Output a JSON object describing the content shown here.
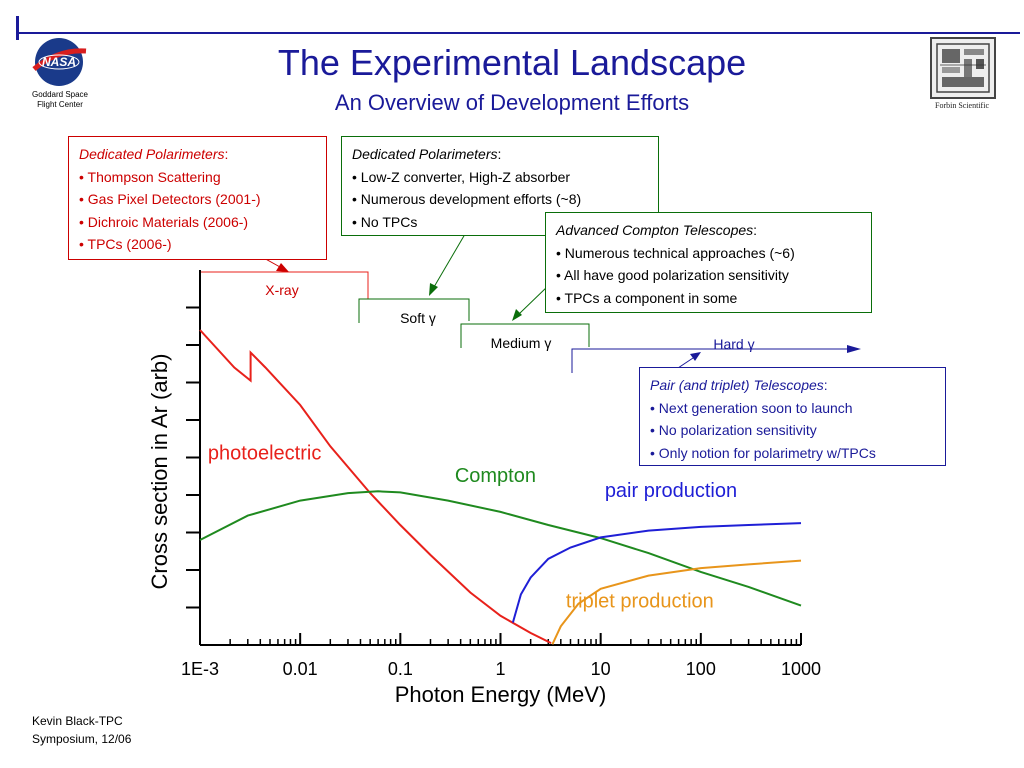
{
  "header": {
    "title": "The Experimental Landscape",
    "subtitle": "An Overview of Development Efforts",
    "nasa_caption_line1": "Goddard Space",
    "nasa_caption_line2": "Flight Center",
    "nasa_logo_text": "NASA",
    "forbin_caption": "Forbin Scientific"
  },
  "footer": {
    "line1": "Kevin Black-TPC",
    "line2": "Symposium, 12/06"
  },
  "callouts": {
    "red_box": {
      "heading": "Dedicated Polarimeters",
      "suffix": ":",
      "items": [
        "• Thompson Scattering",
        "• Gas Pixel Detectors (2001-)",
        "• Dichroic Materials (2006-)",
        "• TPCs (2006-)"
      ]
    },
    "green_box_1": {
      "heading": "Dedicated Polarimeters",
      "suffix": ":",
      "items": [
        "• Low-Z converter, High-Z absorber",
        "• Numerous development efforts (~8)",
        "• No TPCs"
      ]
    },
    "green_box_2": {
      "heading": "Advanced Compton Telescopes",
      "suffix": ":",
      "items": [
        "• Numerous technical approaches (~6)",
        "• All have good polarization sensitivity",
        "• TPCs a component in some"
      ]
    },
    "blue_box": {
      "heading": "Pair (and triplet) Telescopes",
      "suffix": ":",
      "items": [
        "• Next generation soon to launch",
        "• No polarization sensitivity",
        "• Only notion for polarimetry w/TPCs"
      ]
    }
  },
  "energy_bands": {
    "xray": "X-ray",
    "soft": "Soft γ",
    "medium": "Medium γ",
    "hard": "Hard γ"
  },
  "colors": {
    "title": "#1a1a99",
    "photoelectric": "#e8211b",
    "compton": "#1f8a1f",
    "pair": "#1f1fd6",
    "triplet": "#e8951b",
    "red_box": "#cc0000",
    "green_box": "#0a6e0a",
    "blue_box": "#1a1a99"
  },
  "chart_data": {
    "type": "line",
    "xlabel": "Photon Energy (MeV)",
    "ylabel": "Cross section in Ar (arb)",
    "xscale": "log",
    "xlim": [
      0.001,
      1000
    ],
    "xticks": [
      {
        "value": 0.001,
        "label": "1E-3"
      },
      {
        "value": 0.01,
        "label": "0.01"
      },
      {
        "value": 0.1,
        "label": "0.1"
      },
      {
        "value": 1,
        "label": "1"
      },
      {
        "value": 10,
        "label": "10"
      },
      {
        "value": 100,
        "label": "100"
      },
      {
        "value": 1000,
        "label": "1000"
      }
    ],
    "ylim": [
      0,
      10
    ],
    "yticks": [
      1,
      2,
      3,
      4,
      5,
      6,
      7,
      8,
      9
    ],
    "ytick_labels_shown": false,
    "grid": false,
    "series": [
      {
        "name": "photoelectric",
        "color": "#e8211b",
        "points": [
          [
            0.001,
            8.4
          ],
          [
            0.0022,
            7.4
          ],
          [
            0.0032,
            7.05
          ],
          [
            0.0032,
            7.8
          ],
          [
            0.0045,
            7.4
          ],
          [
            0.01,
            6.4
          ],
          [
            0.02,
            5.3
          ],
          [
            0.05,
            4.05
          ],
          [
            0.1,
            3.2
          ],
          [
            0.2,
            2.4
          ],
          [
            0.5,
            1.4
          ],
          [
            1,
            0.78
          ],
          [
            2,
            0.32
          ],
          [
            3.2,
            0.05
          ]
        ]
      },
      {
        "name": "Compton",
        "color": "#1f8a1f",
        "points": [
          [
            0.001,
            2.8
          ],
          [
            0.003,
            3.45
          ],
          [
            0.01,
            3.85
          ],
          [
            0.03,
            4.05
          ],
          [
            0.06,
            4.1
          ],
          [
            0.1,
            4.07
          ],
          [
            0.3,
            3.85
          ],
          [
            1,
            3.55
          ],
          [
            3,
            3.2
          ],
          [
            10,
            2.85
          ],
          [
            30,
            2.45
          ],
          [
            100,
            1.95
          ],
          [
            300,
            1.55
          ],
          [
            1000,
            1.05
          ]
        ]
      },
      {
        "name": "pair production",
        "color": "#1f1fd6",
        "points": [
          [
            1.33,
            0.6
          ],
          [
            1.6,
            1.35
          ],
          [
            2,
            1.8
          ],
          [
            3,
            2.3
          ],
          [
            5,
            2.6
          ],
          [
            10,
            2.87
          ],
          [
            30,
            3.05
          ],
          [
            100,
            3.15
          ],
          [
            300,
            3.2
          ],
          [
            1000,
            3.25
          ]
        ]
      },
      {
        "name": "triplet production",
        "color": "#e8951b",
        "points": [
          [
            3.3,
            0.02
          ],
          [
            4,
            0.5
          ],
          [
            6,
            1.1
          ],
          [
            10,
            1.5
          ],
          [
            30,
            1.85
          ],
          [
            100,
            2.05
          ],
          [
            300,
            2.15
          ],
          [
            1000,
            2.25
          ]
        ]
      }
    ],
    "annotations": [
      {
        "text": "photoelectric",
        "x": 0.0012,
        "y": 4.95,
        "color": "#e8211b"
      },
      {
        "text": "Compton",
        "x": 0.35,
        "y": 4.35,
        "color": "#1f8a1f"
      },
      {
        "text": "pair production",
        "x": 11,
        "y": 3.95,
        "color": "#1f1fd6"
      },
      {
        "text": "triplet production",
        "x": 4.5,
        "y": 1.0,
        "color": "#e8951b"
      }
    ]
  }
}
